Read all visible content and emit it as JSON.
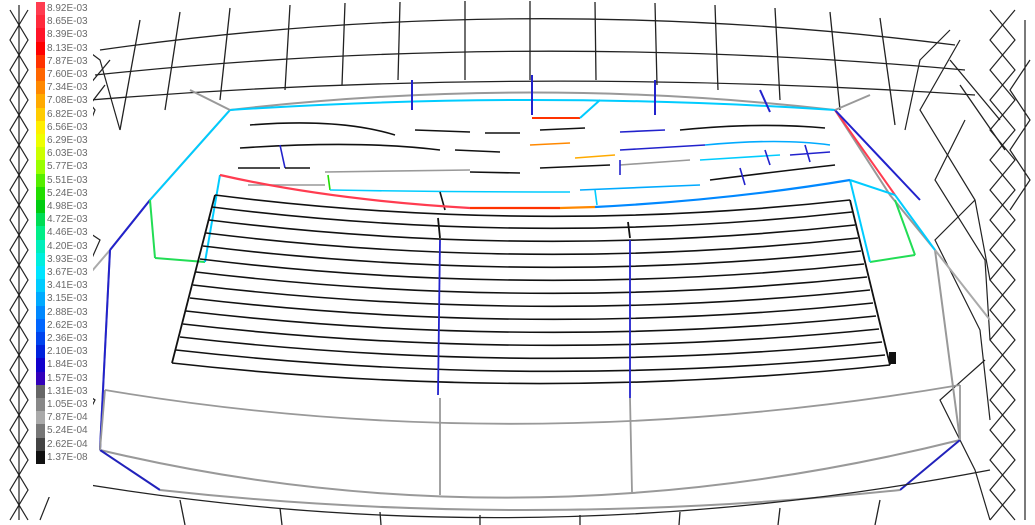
{
  "legend": {
    "entries": [
      {
        "label": "8.92E-03",
        "color": "#ff3c50"
      },
      {
        "label": "8.65E-03",
        "color": "#ff2a3c"
      },
      {
        "label": "8.39E-03",
        "color": "#ff1428"
      },
      {
        "label": "8.13E-03",
        "color": "#ff0000"
      },
      {
        "label": "7.87E-03",
        "color": "#ff3300"
      },
      {
        "label": "7.60E-03",
        "color": "#ff6600"
      },
      {
        "label": "7.34E-03",
        "color": "#ff8800"
      },
      {
        "label": "7.08E-03",
        "color": "#ffaa00"
      },
      {
        "label": "6.82E-03",
        "color": "#ffcc00"
      },
      {
        "label": "6.56E-03",
        "color": "#ffee00"
      },
      {
        "label": "6.29E-03",
        "color": "#eeff00"
      },
      {
        "label": "6.03E-03",
        "color": "#ccff00"
      },
      {
        "label": "5.77E-03",
        "color": "#99ff00"
      },
      {
        "label": "5.51E-03",
        "color": "#55ee00"
      },
      {
        "label": "5.24E-03",
        "color": "#22dd00"
      },
      {
        "label": "4.98E-03",
        "color": "#00cc11"
      },
      {
        "label": "4.72E-03",
        "color": "#00dd55"
      },
      {
        "label": "4.46E-03",
        "color": "#00ee88"
      },
      {
        "label": "4.20E-03",
        "color": "#00eebb"
      },
      {
        "label": "3.93E-03",
        "color": "#00eedd"
      },
      {
        "label": "3.67E-03",
        "color": "#00e5ff"
      },
      {
        "label": "3.41E-03",
        "color": "#00ccff"
      },
      {
        "label": "3.15E-03",
        "color": "#00aaff"
      },
      {
        "label": "2.88E-03",
        "color": "#0088ff"
      },
      {
        "label": "2.62E-03",
        "color": "#0066ff"
      },
      {
        "label": "2.36E-03",
        "color": "#0044ee"
      },
      {
        "label": "2.10E-03",
        "color": "#0022dd"
      },
      {
        "label": "1.84E-03",
        "color": "#1100cc"
      },
      {
        "label": "1.57E-03",
        "color": "#3300bb"
      },
      {
        "label": "1.31E-03",
        "color": "#666666"
      },
      {
        "label": "1.05E-03",
        "color": "#888888"
      },
      {
        "label": "7.87E-04",
        "color": "#aaaaaa"
      },
      {
        "label": "5.24E-04",
        "color": "#777777"
      },
      {
        "label": "2.62E-04",
        "color": "#444444"
      },
      {
        "label": "1.37E-08",
        "color": "#111111"
      }
    ]
  },
  "footer": {
    "text": ""
  }
}
